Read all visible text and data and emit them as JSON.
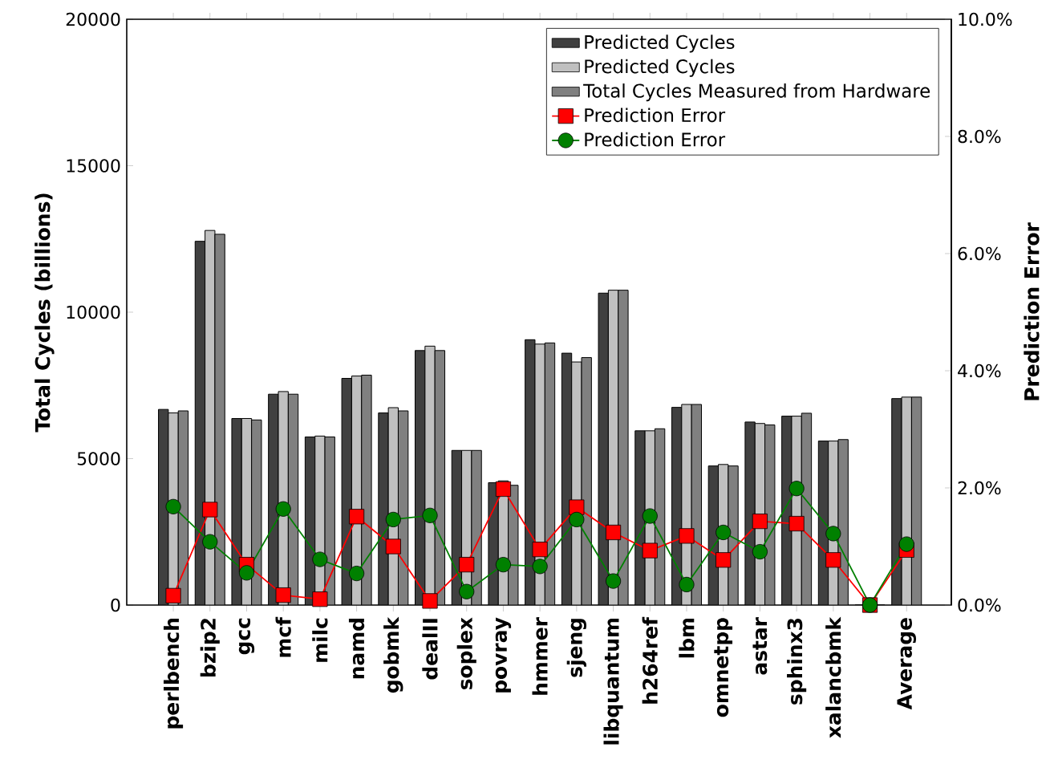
{
  "chart_data": {
    "type": "bar",
    "categories": [
      "perlbench",
      "bzip2",
      "gcc",
      "mcf",
      "milc",
      "namd",
      "gobmk",
      "dealII",
      "soplex",
      "povray",
      "hmmer",
      "sjeng",
      "libquantum",
      "h264ref",
      "lbm",
      "omnetpp",
      "astar",
      "sphinx3",
      "xalancbmk",
      null,
      "Average"
    ],
    "ylabel": "Total Cycles (billions)",
    "y2label": "Prediction Error",
    "ylim": [
      0,
      20000
    ],
    "yticks": [
      0,
      5000,
      10000,
      15000,
      20000
    ],
    "y2lim": [
      0,
      10
    ],
    "y2ticks": [
      {
        "value": 0,
        "label": "0.0%"
      },
      {
        "value": 2,
        "label": "2.0%"
      },
      {
        "value": 4,
        "label": "4.0%"
      },
      {
        "value": 6,
        "label": "6.0%"
      },
      {
        "value": 8,
        "label": "8.0%"
      },
      {
        "value": 10,
        "label": "10.0%"
      }
    ],
    "legend": "top right",
    "series": [
      {
        "name": "Predicted Cycles",
        "color": "#404040",
        "values": [
          6680,
          12420,
          6370,
          7200,
          5740,
          7740,
          6560,
          8690,
          5280,
          4180,
          9060,
          8600,
          10650,
          5950,
          6750,
          4750,
          6250,
          6450,
          5600,
          0,
          7050
        ]
      },
      {
        "name": "Predicted Cycles",
        "color": "#c0c0c0",
        "values": [
          6560,
          12790,
          6370,
          7290,
          5770,
          7820,
          6740,
          8840,
          5280,
          4240,
          8910,
          8300,
          10750,
          5950,
          6850,
          4800,
          6200,
          6450,
          5600,
          0,
          7100
        ]
      },
      {
        "name": "Total Cycles Measured from Hardware",
        "color": "#808080",
        "values": [
          6630,
          12660,
          6320,
          7200,
          5740,
          7850,
          6630,
          8690,
          5280,
          4090,
          8950,
          8450,
          10750,
          6020,
          6850,
          4750,
          6150,
          6550,
          5650,
          0,
          7100
        ]
      },
      {
        "name": "Prediction Error",
        "type": "line",
        "axis": "y2",
        "marker": "square",
        "color": "#ff0000",
        "values": [
          0.16,
          1.63,
          0.69,
          0.17,
          0.1,
          1.51,
          1.0,
          0.07,
          0.69,
          1.98,
          0.95,
          1.67,
          1.24,
          0.93,
          1.18,
          0.77,
          1.43,
          1.39,
          0.77,
          0,
          0.94
        ]
      },
      {
        "name": "Prediction Error",
        "type": "line",
        "axis": "y2",
        "marker": "circle",
        "color": "#008000",
        "values": [
          1.68,
          1.08,
          0.55,
          1.64,
          0.78,
          0.54,
          1.46,
          1.53,
          0.23,
          0.69,
          0.66,
          1.46,
          0.41,
          1.52,
          0.35,
          1.24,
          0.91,
          1.99,
          1.22,
          0,
          1.04
        ]
      }
    ]
  }
}
